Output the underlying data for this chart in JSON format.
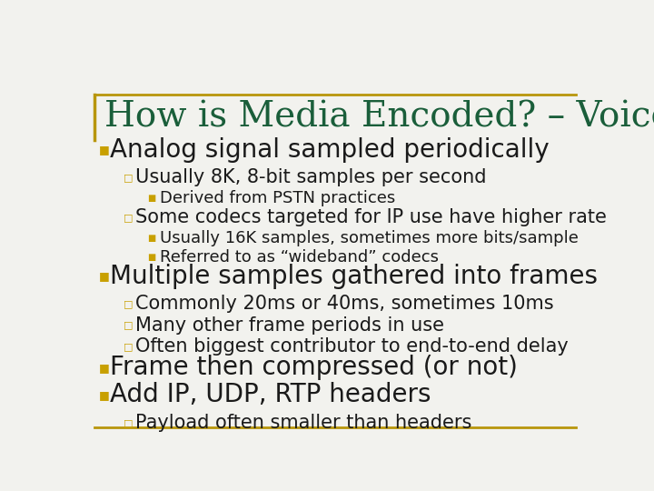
{
  "title": "How is Media Encoded? – Voice",
  "title_color": "#1a5e3a",
  "title_fontsize": 28,
  "border_color": "#b8960c",
  "background_color": "#f2f2ee",
  "bullet_color": "#c8a000",
  "text_color": "#1a1a1a",
  "items": [
    {
      "level": 1,
      "text": "Analog signal sampled periodically",
      "fontsize": 20
    },
    {
      "level": 2,
      "text": "Usually 8K, 8-bit samples per second",
      "fontsize": 15
    },
    {
      "level": 3,
      "text": "Derived from PSTN practices",
      "fontsize": 13
    },
    {
      "level": 2,
      "text": "Some codecs targeted for IP use have higher rate",
      "fontsize": 15
    },
    {
      "level": 3,
      "text": "Usually 16K samples, sometimes more bits/sample",
      "fontsize": 13
    },
    {
      "level": 3,
      "text": "Referred to as “wideband” codecs",
      "fontsize": 13
    },
    {
      "level": 1,
      "text": "Multiple samples gathered into frames",
      "fontsize": 20
    },
    {
      "level": 2,
      "text": "Commonly 20ms or 40ms, sometimes 10ms",
      "fontsize": 15
    },
    {
      "level": 2,
      "text": "Many other frame periods in use",
      "fontsize": 15
    },
    {
      "level": 2,
      "text": "Often biggest contributor to end-to-end delay",
      "fontsize": 15
    },
    {
      "level": 1,
      "text": "Frame then compressed (or not)",
      "fontsize": 20
    },
    {
      "level": 1,
      "text": "Add IP, UDP, RTP headers",
      "fontsize": 20
    },
    {
      "level": 2,
      "text": "Payload often smaller than headers",
      "fontsize": 15
    }
  ],
  "level_indent": {
    "1": 0.055,
    "2": 0.105,
    "3": 0.155
  },
  "bullet_indent": {
    "1": 0.033,
    "2": 0.082,
    "3": 0.13
  },
  "bullet_chars": {
    "1": "■",
    "2": "□",
    "3": "■"
  },
  "bullet_sizes": {
    "1": 9,
    "2": 8,
    "3": 7
  },
  "line_heights": {
    "1": 0.073,
    "2": 0.056,
    "3": 0.05
  }
}
